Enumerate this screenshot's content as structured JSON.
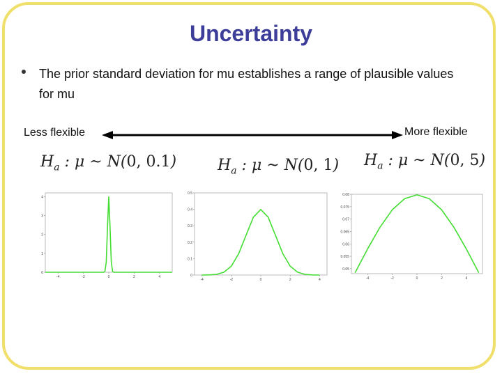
{
  "slide": {
    "title": "Uncertainty",
    "bullet": "The prior standard deviation for mu establishes a range of plausible values for mu",
    "scale": {
      "left_label": "Less flexible",
      "right_label": "More flexible"
    },
    "colors": {
      "title": "#3d3d9a",
      "frame": "#f0df6a",
      "curve": "#44dd33"
    }
  },
  "models": [
    {
      "lhs": "H",
      "sub": "a",
      "mid": " : μ ~ N(",
      "args": "0, 0.1",
      "close": ")"
    },
    {
      "lhs": "H",
      "sub": "a",
      "mid": " : μ ~ N(",
      "args": "0, 1",
      "close": ")"
    },
    {
      "lhs": "H",
      "sub": "a",
      "mid": " : μ ~ N(",
      "args": "0, 5",
      "close": ")"
    }
  ],
  "chart_data": [
    {
      "type": "line",
      "x": [
        -5,
        -4,
        -3,
        -2,
        -1,
        -0.4,
        -0.3,
        -0.2,
        -0.1,
        0,
        0.1,
        0.2,
        0.3,
        0.4,
        1,
        2,
        3,
        4,
        5
      ],
      "y": [
        0,
        0,
        0,
        0,
        0,
        0.0044,
        0.044,
        0.54,
        2.42,
        3.99,
        2.42,
        0.54,
        0.044,
        0.0044,
        0,
        0,
        0,
        0,
        0
      ],
      "x_ticks": [
        "-4",
        "-2",
        "0",
        "2",
        "4"
      ],
      "y_ticks": [
        "0",
        "1",
        "2",
        "3",
        "4"
      ],
      "xlim": [
        -5,
        5
      ],
      "ylim": [
        0,
        4.2
      ]
    },
    {
      "type": "line",
      "x": [
        -4,
        -3.5,
        -3,
        -2.5,
        -2,
        -1.5,
        -1,
        -0.5,
        0,
        0.5,
        1,
        1.5,
        2,
        2.5,
        3,
        3.5,
        4
      ],
      "y": [
        0.0001,
        0.0009,
        0.0044,
        0.0175,
        0.054,
        0.1295,
        0.242,
        0.352,
        0.399,
        0.352,
        0.242,
        0.1295,
        0.054,
        0.0175,
        0.0044,
        0.0009,
        0.0001
      ],
      "x_ticks": [
        "-4",
        "-2",
        "0",
        "2",
        "4"
      ],
      "y_ticks": [
        "0",
        "0.1",
        "0.2",
        "0.3",
        "0.4",
        "0.5"
      ],
      "xlim": [
        -4.5,
        4.5
      ],
      "ylim": [
        0,
        0.5
      ]
    },
    {
      "type": "line",
      "x": [
        -5,
        -4,
        -3,
        -2,
        -1,
        0,
        1,
        2,
        3,
        4,
        5
      ],
      "y": [
        0.0484,
        0.0579,
        0.0666,
        0.0737,
        0.0782,
        0.0798,
        0.0782,
        0.0737,
        0.0666,
        0.0579,
        0.0484
      ],
      "x_ticks": [
        "-4",
        "-2",
        "0",
        "2",
        "4"
      ],
      "y_ticks": [
        "0.05",
        "0.055",
        "0.06",
        "0.065",
        "0.07",
        "0.075",
        "0.08"
      ],
      "xlim": [
        -5.3,
        5.3
      ],
      "ylim": [
        0.048,
        0.08
      ]
    }
  ]
}
